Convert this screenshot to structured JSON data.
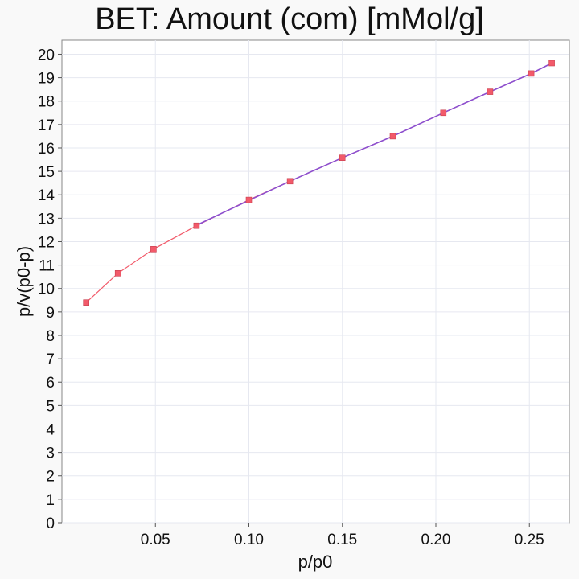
{
  "chart_data": {
    "type": "scatter",
    "title": "BET: Amount (com) [mMol/g]",
    "xlabel": "p/p0",
    "ylabel": "p/v(p0-p)",
    "xlim": [
      0.0,
      0.2714
    ],
    "ylim": [
      0,
      20.6
    ],
    "xticks": [
      "0.05",
      "0.10",
      "0.15",
      "0.20",
      "0.25"
    ],
    "xtick_values": [
      0.05,
      0.1,
      0.15,
      0.2,
      0.25
    ],
    "yticks": [
      "0",
      "1",
      "2",
      "3",
      "4",
      "5",
      "6",
      "7",
      "8",
      "9",
      "10",
      "11",
      "12",
      "13",
      "14",
      "15",
      "16",
      "17",
      "18",
      "19",
      "20"
    ],
    "ytick_values": [
      0,
      1,
      2,
      3,
      4,
      5,
      6,
      7,
      8,
      9,
      10,
      11,
      12,
      13,
      14,
      15,
      16,
      17,
      18,
      19,
      20
    ],
    "grid": true,
    "series": [
      {
        "kind": "points-line",
        "color": "#f25a6a",
        "x": [
          0.013,
          0.03,
          0.049,
          0.072,
          0.1,
          0.122,
          0.15,
          0.177,
          0.204,
          0.229,
          0.251,
          0.262
        ],
        "y": [
          9.4,
          10.65,
          11.68,
          12.68,
          13.78,
          14.58,
          15.58,
          16.5,
          17.5,
          18.4,
          19.18,
          19.62
        ]
      },
      {
        "kind": "fit-line",
        "color": "#8c4fcf",
        "x": [
          0.072,
          0.1,
          0.122,
          0.15,
          0.177,
          0.204,
          0.229,
          0.251,
          0.262
        ],
        "y": [
          12.7,
          13.76,
          14.58,
          15.58,
          16.5,
          17.5,
          18.4,
          19.18,
          19.62
        ]
      }
    ]
  }
}
